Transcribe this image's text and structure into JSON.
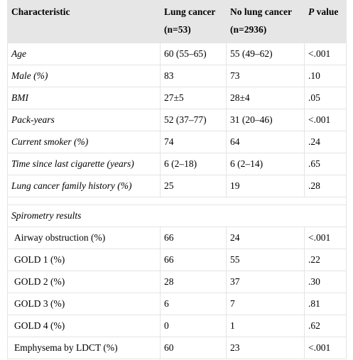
{
  "header": {
    "columns": [
      {
        "lines": [
          "Characteristic"
        ]
      },
      {
        "lines": [
          "Lung cancer",
          "(n=53)"
        ]
      },
      {
        "lines": [
          "No lung cancer",
          "(n=2936)"
        ]
      },
      {
        "italic": "P",
        "text": "value"
      }
    ]
  },
  "table": {
    "rows": [
      [
        "Age",
        "60 (55–65)",
        "55 (49–62)",
        "<.001"
      ],
      [
        "Male (%)",
        "83",
        "73",
        ".10"
      ],
      [
        "BMI",
        "27±5",
        "28±4",
        ".05"
      ],
      [
        "Pack-years",
        "52 (37–77)",
        "31 (20–46)",
        "<.001"
      ],
      [
        "Current smoker (%)",
        "74",
        "64",
        ".24"
      ],
      [
        "Time since last cigarette (years)",
        "6 (2–18)",
        "6 (2–14)",
        ".65"
      ],
      [
        "Lung cancer family history (%)",
        "25",
        "19",
        ".28"
      ]
    ]
  },
  "spirometry": {
    "title": "Spirometry results",
    "rows": [
      [
        "Airway obstruction (%)",
        "66",
        "24",
        "<.001"
      ],
      [
        "GOLD 1 (%)",
        "66",
        "55",
        ".22"
      ],
      [
        "GOLD 2 (%)",
        "28",
        "37",
        ".30"
      ],
      [
        "GOLD 3 (%)",
        "6",
        "7",
        ".81"
      ],
      [
        "GOLD 4 (%)",
        "0",
        "1",
        ".62"
      ],
      [
        "Emphysema by LDCT (%)",
        "60",
        "23",
        "<.001"
      ]
    ]
  }
}
